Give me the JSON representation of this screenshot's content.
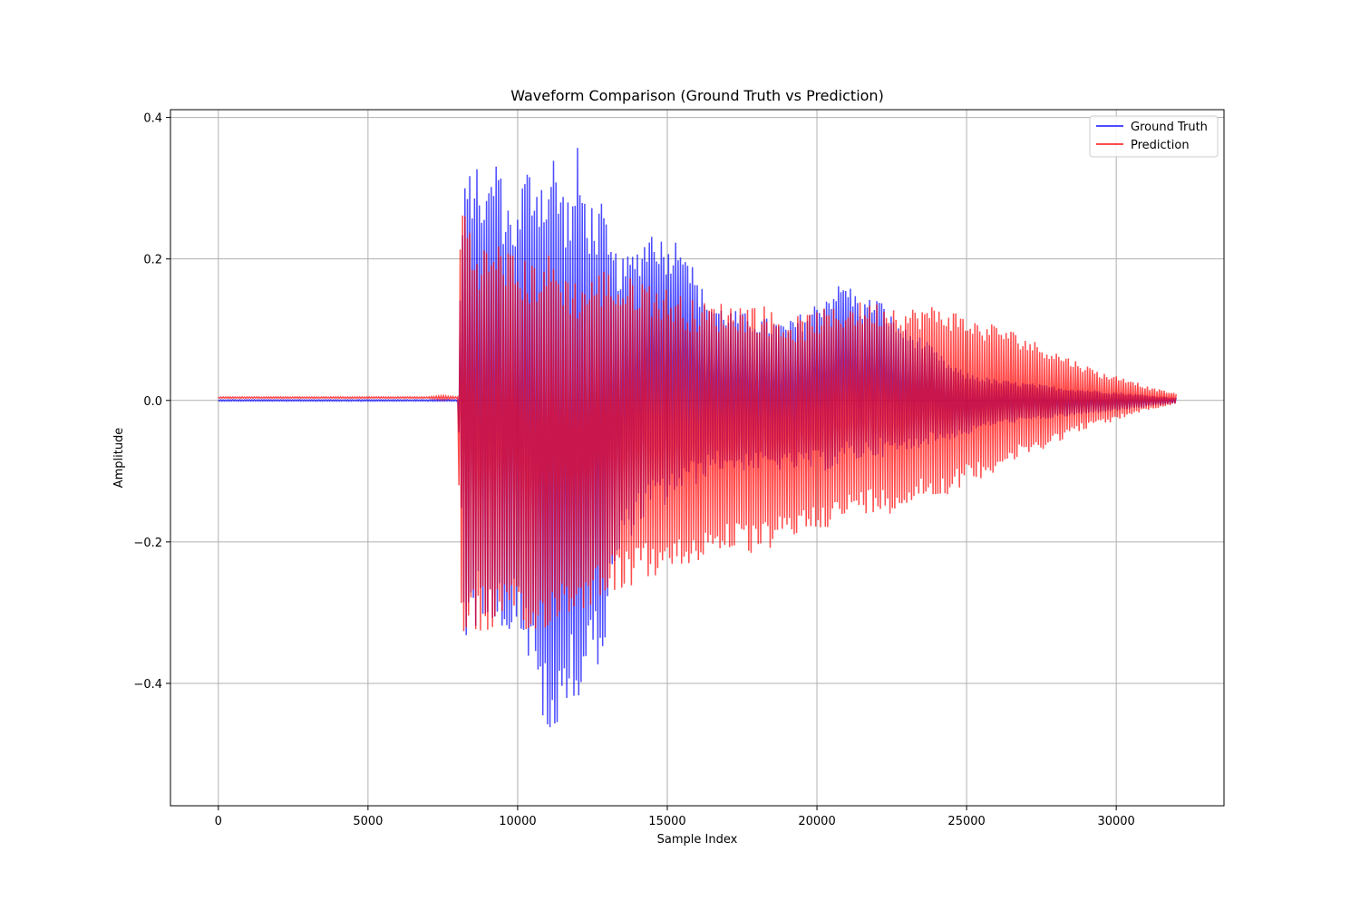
{
  "chart_data": {
    "type": "line",
    "title": "Waveform Comparison (Ground Truth vs Prediction)",
    "xlabel": "Sample Index",
    "ylabel": "Amplitude",
    "xlim": [
      -1600,
      33600
    ],
    "ylim": [
      -0.573,
      0.411
    ],
    "x_ticks": [
      0,
      5000,
      10000,
      15000,
      20000,
      25000,
      30000
    ],
    "x_tick_labels": [
      "0",
      "5000",
      "10000",
      "15000",
      "20000",
      "25000",
      "30000"
    ],
    "y_ticks": [
      -0.4,
      -0.2,
      0.0,
      0.2,
      0.4
    ],
    "y_tick_labels": [
      "−0.4",
      "−0.2",
      "0.0",
      "0.2",
      "0.4"
    ],
    "grid": true,
    "legend_position": "top-right",
    "series": [
      {
        "name": "Ground Truth",
        "color": "#0000ff",
        "alpha": 0.7,
        "envelope": {
          "x": [
            0,
            8000,
            8100,
            8200,
            8500,
            9000,
            9300,
            9500,
            10000,
            10200,
            10500,
            11000,
            11200,
            11500,
            11800,
            12000,
            12300,
            12600,
            12900,
            13000,
            13500,
            14000,
            14500,
            15000,
            15500,
            16000,
            16500,
            17000,
            18000,
            19000,
            20000,
            20500,
            21000,
            21500,
            22000,
            22500,
            23000,
            23500,
            24000,
            24500,
            25000,
            25500,
            26000,
            27000,
            28000,
            29000,
            30000,
            31000,
            32000
          ],
          "upper": [
            0.001,
            0.001,
            0.2,
            0.3,
            0.34,
            0.3,
            0.37,
            0.3,
            0.27,
            0.33,
            0.34,
            0.33,
            0.36,
            0.31,
            0.29,
            0.36,
            0.29,
            0.28,
            0.28,
            0.23,
            0.2,
            0.22,
            0.25,
            0.22,
            0.24,
            0.17,
            0.14,
            0.13,
            0.12,
            0.11,
            0.14,
            0.16,
            0.17,
            0.14,
            0.15,
            0.12,
            0.1,
            0.09,
            0.07,
            0.05,
            0.04,
            0.035,
            0.03,
            0.025,
            0.02,
            0.016,
            0.012,
            0.008,
            0.004
          ],
          "lower": [
            -0.001,
            -0.001,
            -0.14,
            -0.34,
            -0.33,
            -0.3,
            -0.33,
            -0.34,
            -0.31,
            -0.35,
            -0.4,
            -0.48,
            -0.53,
            -0.44,
            -0.4,
            -0.46,
            -0.38,
            -0.38,
            -0.36,
            -0.3,
            -0.21,
            -0.18,
            -0.16,
            -0.15,
            -0.13,
            -0.12,
            -0.1,
            -0.1,
            -0.1,
            -0.1,
            -0.1,
            -0.1,
            -0.09,
            -0.085,
            -0.08,
            -0.08,
            -0.075,
            -0.065,
            -0.06,
            -0.055,
            -0.05,
            -0.04,
            -0.035,
            -0.03,
            -0.025,
            -0.02,
            -0.015,
            -0.01,
            -0.004
          ]
        }
      },
      {
        "name": "Prediction",
        "color": "#ff0000",
        "alpha": 0.7,
        "envelope": {
          "x": [
            0,
            7000,
            7500,
            8000,
            8100,
            8200,
            8500,
            9000,
            9500,
            10000,
            10500,
            11000,
            11500,
            12000,
            12500,
            13000,
            13500,
            14000,
            14500,
            15000,
            15500,
            16000,
            16500,
            17000,
            17500,
            18000,
            18500,
            19000,
            19500,
            20000,
            20500,
            21000,
            21500,
            22000,
            22500,
            23000,
            23500,
            24000,
            24500,
            25000,
            25500,
            26000,
            26500,
            27000,
            27500,
            28000,
            28500,
            29000,
            29500,
            30000,
            30500,
            31000,
            31500,
            32000
          ],
          "upper": [
            0.005,
            0.005,
            0.007,
            0.005,
            0.3,
            0.3,
            0.23,
            0.22,
            0.23,
            0.2,
            0.2,
            0.21,
            0.19,
            0.17,
            0.18,
            0.19,
            0.17,
            0.18,
            0.17,
            0.16,
            0.15,
            0.14,
            0.14,
            0.14,
            0.14,
            0.14,
            0.13,
            0.12,
            0.12,
            0.13,
            0.13,
            0.14,
            0.14,
            0.14,
            0.14,
            0.13,
            0.135,
            0.135,
            0.13,
            0.12,
            0.11,
            0.11,
            0.1,
            0.09,
            0.08,
            0.07,
            0.06,
            0.05,
            0.04,
            0.035,
            0.03,
            0.02,
            0.015,
            0.01
          ],
          "lower": [
            0.003,
            0.003,
            0.001,
            0.003,
            -0.34,
            -0.34,
            -0.33,
            -0.33,
            -0.32,
            -0.33,
            -0.35,
            -0.32,
            -0.31,
            -0.3,
            -0.29,
            -0.27,
            -0.27,
            -0.26,
            -0.25,
            -0.25,
            -0.24,
            -0.23,
            -0.22,
            -0.21,
            -0.22,
            -0.22,
            -0.21,
            -0.2,
            -0.19,
            -0.18,
            -0.18,
            -0.17,
            -0.16,
            -0.16,
            -0.16,
            -0.15,
            -0.14,
            -0.14,
            -0.13,
            -0.12,
            -0.11,
            -0.1,
            -0.09,
            -0.08,
            -0.07,
            -0.06,
            -0.05,
            -0.04,
            -0.035,
            -0.03,
            -0.02,
            -0.015,
            -0.01,
            -0.005
          ]
        }
      }
    ]
  }
}
